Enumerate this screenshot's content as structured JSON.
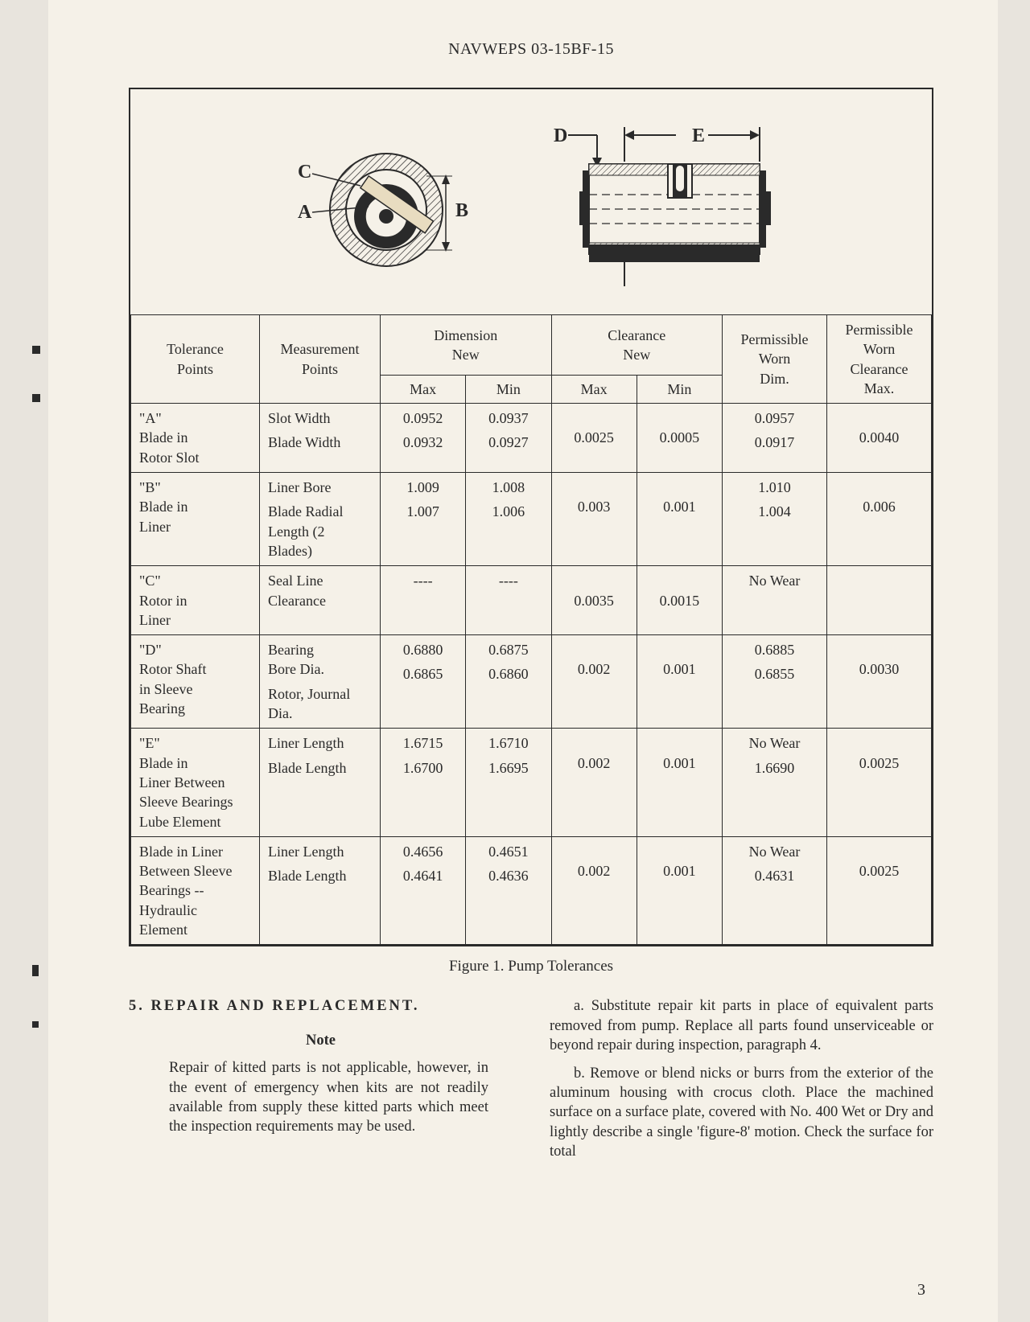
{
  "doc": {
    "header": "NAVWEPS 03-15BF-15",
    "page_number": "3",
    "caption": "Figure 1.  Pump Tolerances"
  },
  "diagram": {
    "labels": {
      "A": "A",
      "B": "B",
      "C": "C",
      "D": "D",
      "E": "E"
    },
    "stroke": "#2a2a2a",
    "fill_dark": "#2a2a2a",
    "hatch": "#2a2a2a"
  },
  "table": {
    "headers": {
      "tol": "Tolerance\nPoints",
      "meas": "Measurement\nPoints",
      "dim": "Dimension\nNew",
      "clr": "Clearance\nNew",
      "worn": "Permissible\nWorn\nDim.",
      "wornclr": "Permissible\nWorn\nClearance\nMax.",
      "max": "Max",
      "min": "Min"
    },
    "rows": [
      {
        "tol": "\"A\"\nBlade in\nRotor Slot",
        "meas1": "Slot Width",
        "meas2": "Blade Width",
        "dim1_max": "0.0952",
        "dim1_min": "0.0937",
        "dim2_max": "0.0932",
        "dim2_min": "0.0927",
        "clr_max": "0.0025",
        "clr_min": "0.0005",
        "worn1": "0.0957",
        "worn2": "0.0917",
        "wornclr": "0.0040"
      },
      {
        "tol": "\"B\"\nBlade in\nLiner",
        "meas1": "Liner Bore",
        "meas2": "Blade Radial\nLength (2\nBlades)",
        "dim1_max": "1.009",
        "dim1_min": "1.008",
        "dim2_max": "1.007",
        "dim2_min": "1.006",
        "clr_max": "0.003",
        "clr_min": "0.001",
        "worn1": "1.010",
        "worn2": "1.004",
        "wornclr": "0.006"
      },
      {
        "tol": "\"C\"\nRotor in\nLiner",
        "meas1": "Seal Line\nClearance",
        "meas2": "",
        "dim1_max": "----",
        "dim1_min": "----",
        "dim2_max": "",
        "dim2_min": "",
        "clr_max": "0.0035",
        "clr_min": "0.0015",
        "worn1": "No Wear",
        "worn2": "",
        "wornclr": ""
      },
      {
        "tol": "\"D\"\nRotor Shaft\nin Sleeve\nBearing",
        "meas1": "Bearing\nBore Dia.",
        "meas2": "Rotor, Journal\nDia.",
        "dim1_max": "0.6880",
        "dim1_min": "0.6875",
        "dim2_max": "0.6865",
        "dim2_min": "0.6860",
        "clr_max": "0.002",
        "clr_min": "0.001",
        "worn1": "0.6885",
        "worn2": "0.6855",
        "wornclr": "0.0030"
      },
      {
        "tol": "\"E\"\nBlade in\nLiner Between\nSleeve Bearings\nLube Element",
        "meas1": "Liner Length",
        "meas2": "Blade Length",
        "dim1_max": "1.6715",
        "dim1_min": "1.6710",
        "dim2_max": "1.6700",
        "dim2_min": "1.6695",
        "clr_max": "0.002",
        "clr_min": "0.001",
        "worn1": "No Wear",
        "worn2": "1.6690",
        "wornclr": "0.0025"
      },
      {
        "tol": "Blade in Liner\nBetween Sleeve\nBearings --\nHydraulic\nElement",
        "meas1": "Liner Length",
        "meas2": "Blade Length",
        "dim1_max": "0.4656",
        "dim1_min": "0.4651",
        "dim2_max": "0.4641",
        "dim2_min": "0.4636",
        "clr_max": "0.002",
        "clr_min": "0.001",
        "worn1": "No Wear",
        "worn2": "0.4631",
        "wornclr": "0.0025"
      }
    ]
  },
  "text": {
    "section_head": "5.  REPAIR  AND  REPLACEMENT.",
    "note_head": "Note",
    "note_body": "Repair of kitted parts is not applicable, however, in the event of emergency when kits are not readily available from supply these kitted parts which meet the inspection requirements may be used.",
    "para_a": "a. Substitute repair kit parts in place of equivalent parts removed from pump. Replace all parts found unserviceable or beyond repair during inspection, paragraph 4.",
    "para_b": "b. Remove or blend nicks or burrs from the exterior of the aluminum housing with crocus cloth. Place the machined surface on a surface plate, covered with No. 400 Wet or Dry and lightly describe a single 'figure-8' motion. Check the surface for total"
  }
}
